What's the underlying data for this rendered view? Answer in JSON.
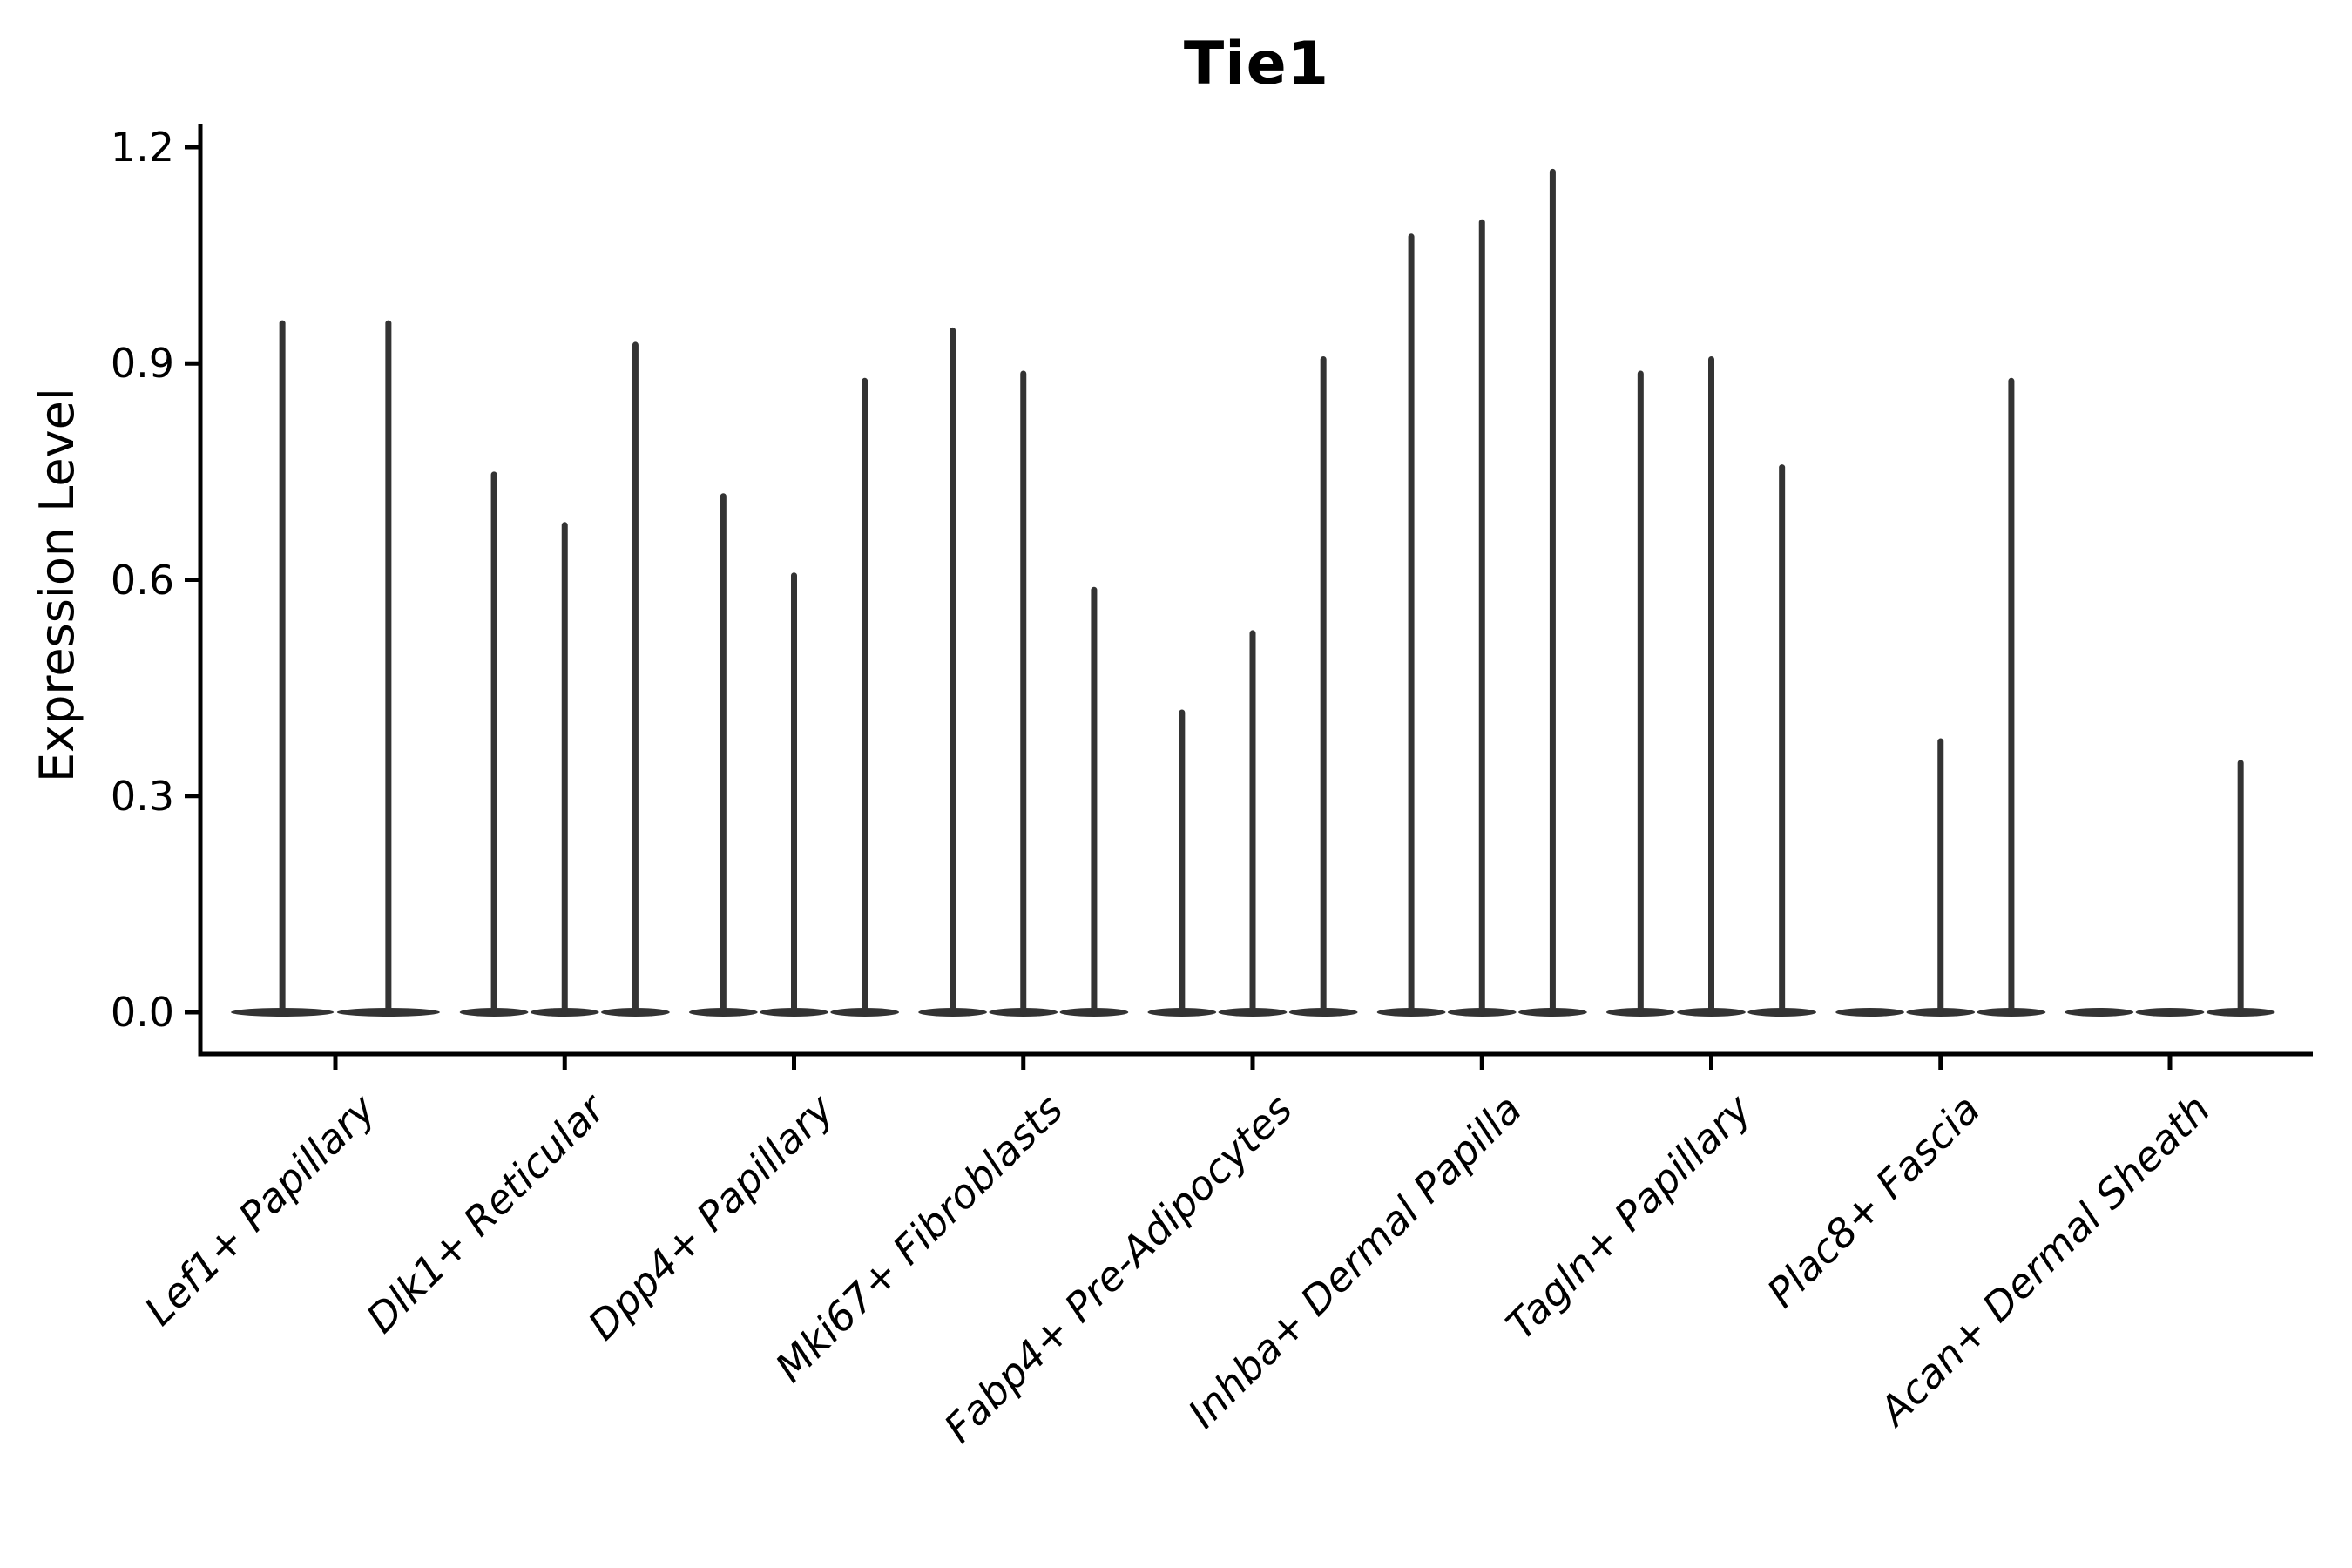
{
  "chart_data": {
    "type": "violin",
    "title": "Tie1",
    "ylabel": "Expression Level",
    "xlabel": "",
    "y_ticks": [
      0.0,
      0.3,
      0.6,
      0.9,
      1.2
    ],
    "y_tick_labels": [
      "0.0",
      "0.3",
      "0.6",
      "0.9",
      "1.2"
    ],
    "ylim": [
      -0.06,
      1.235
    ],
    "grid": false,
    "legend_position": "none",
    "categories": [
      "Lef1+ Papillary",
      "Dlk1+ Reticular",
      "Dpp4+ Papillary",
      "Mki67+ Fibroblasts",
      "Fabp4+ Pre-Adipocytes",
      "Inhba+ Dermal Papilla",
      "Tagln+ Papillary",
      "Plac8+ Fascia",
      "Acan+ Dermal Sheath"
    ],
    "groups": [
      {
        "category": "Lef1+ Papillary",
        "violin_max_values": [
          0.96,
          0.96
        ]
      },
      {
        "category": "Dlk1+ Reticular",
        "violin_max_values": [
          0.75,
          0.68,
          0.93
        ]
      },
      {
        "category": "Dpp4+ Papillary",
        "violin_max_values": [
          0.72,
          0.61,
          0.88
        ]
      },
      {
        "category": "Mki67+ Fibroblasts",
        "violin_max_values": [
          0.95,
          0.89,
          0.59
        ]
      },
      {
        "category": "Fabp4+ Pre-Adipocytes",
        "violin_max_values": [
          0.42,
          0.53,
          0.91
        ]
      },
      {
        "category": "Inhba+ Dermal Papilla",
        "violin_max_values": [
          1.08,
          1.1,
          1.17
        ]
      },
      {
        "category": "Tagln+ Papillary",
        "violin_max_values": [
          0.89,
          0.91,
          0.76
        ]
      },
      {
        "category": "Plac8+ Fascia",
        "violin_max_values": [
          0,
          0.38,
          0.88
        ]
      },
      {
        "category": "Acan+ Dermal Sheath",
        "violin_max_values": [
          0,
          0,
          0.35
        ]
      }
    ],
    "colors": {
      "violin": "#333333",
      "axis": "#000000",
      "text": "#000000",
      "background": "#ffffff"
    }
  }
}
